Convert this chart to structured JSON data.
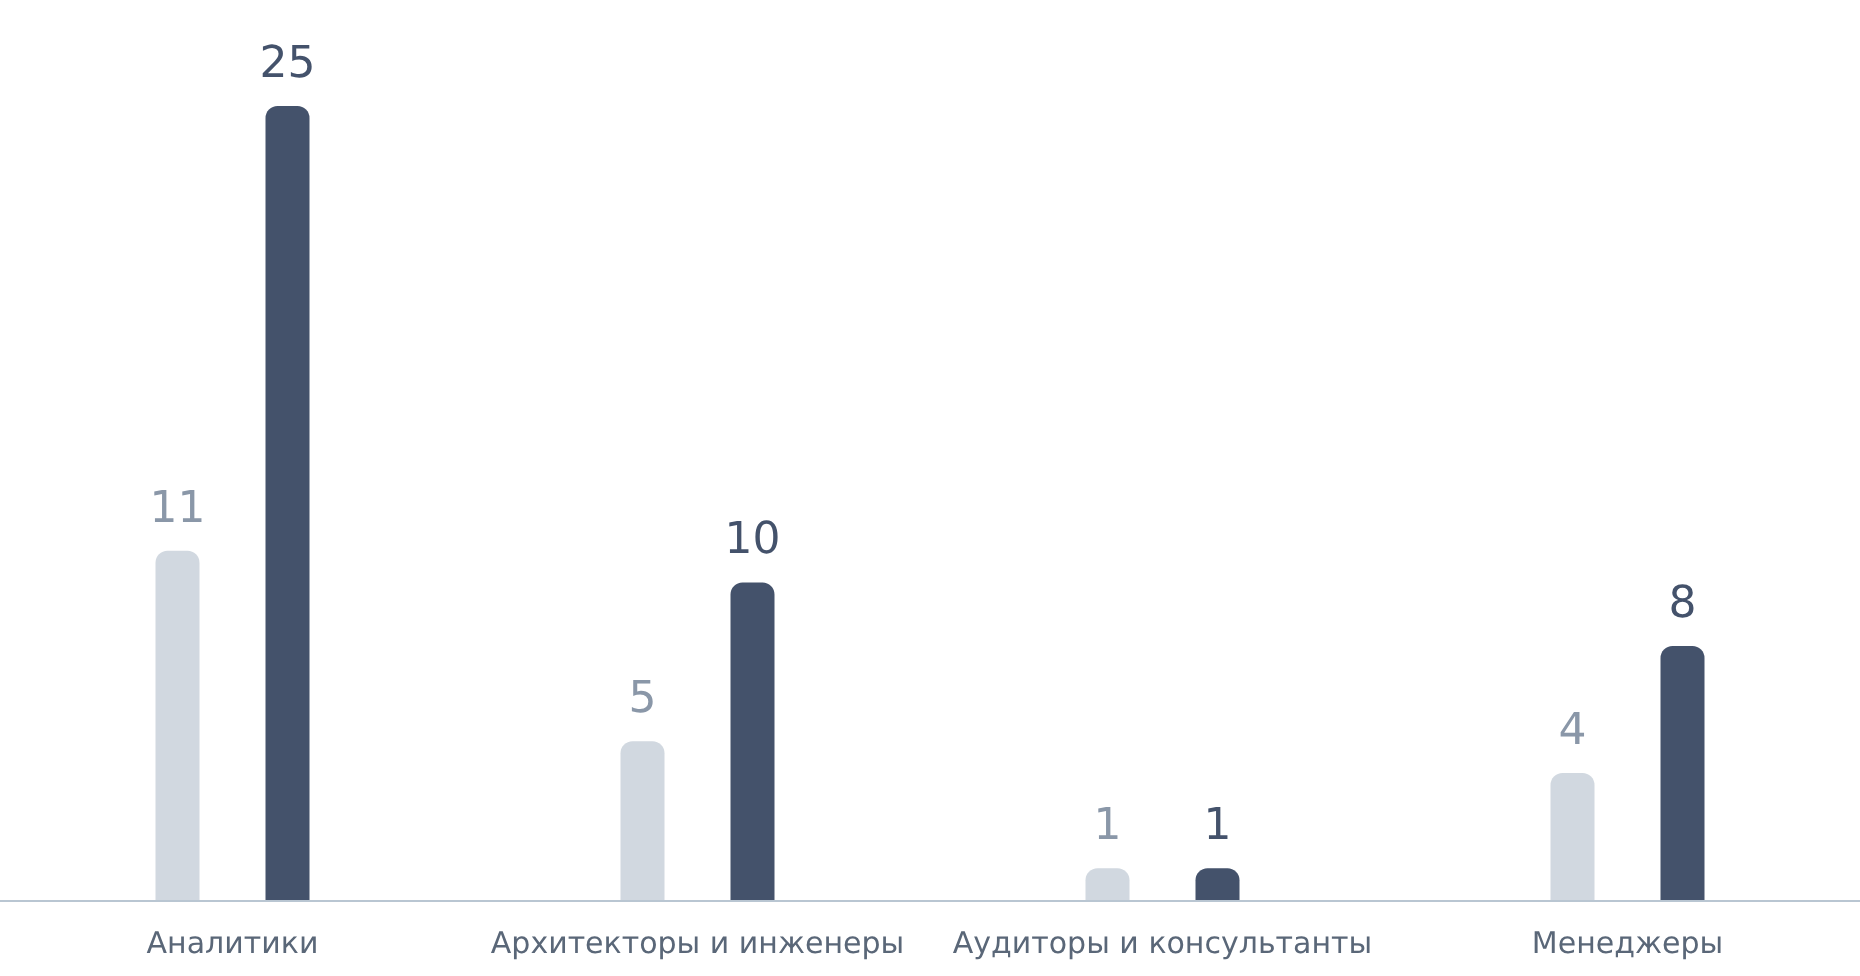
{
  "chart_data": {
    "type": "bar",
    "data_labels": true,
    "tick_labels": "x",
    "categories": [
      "Аналитики",
      "Архитекторы и инженеры",
      "Аудиторы и консультанты",
      "Менеджеры"
    ],
    "series": [
      {
        "color": "#d1d8e0",
        "values": [
          11,
          5,
          1,
          4
        ]
      },
      {
        "color": "#44526b",
        "values": [
          25,
          10,
          1,
          8
        ]
      }
    ]
  }
}
